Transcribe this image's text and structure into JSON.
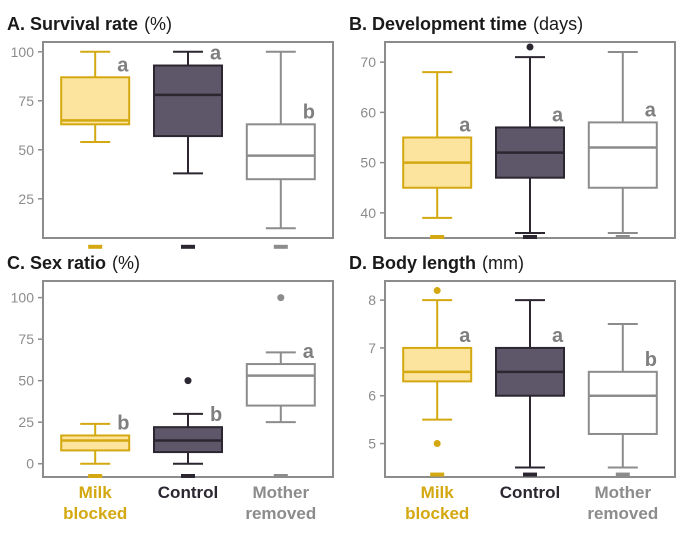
{
  "colors": {
    "milk": "#D4A810",
    "milk_fill": "#FCE39E",
    "control": "#2B2630",
    "control_fill": "#5E5669",
    "mother": "#8C8C8C",
    "mother_fill": "#FFFFFF",
    "axis": "#8C8C8C",
    "tick_text": "#8C8C8C",
    "letter": "#7F7F7F"
  },
  "groups": [
    {
      "id": "milk",
      "lines": [
        "Milk",
        "blocked"
      ]
    },
    {
      "id": "control",
      "lines": [
        "Control"
      ]
    },
    {
      "id": "mother",
      "lines": [
        "Mother",
        "removed"
      ]
    }
  ],
  "chart_data": [
    {
      "type": "box",
      "title_bold": "A. Survival rate",
      "title_unit": "(%)",
      "ylim": [
        5,
        105
      ],
      "yticks": [
        "25",
        "50",
        "75",
        "100"
      ],
      "categories": [
        "Milk blocked",
        "Control",
        "Mother removed"
      ],
      "boxes": [
        {
          "group": "milk",
          "min": 54,
          "q1": 63,
          "median": 65,
          "q3": 87,
          "max": 100,
          "outliers": [],
          "floor": 0,
          "letter": "a"
        },
        {
          "group": "control",
          "min": 38,
          "q1": 57,
          "median": 78,
          "q3": 93,
          "max": 100,
          "outliers": [],
          "floor": 0,
          "letter": "a"
        },
        {
          "group": "mother",
          "min": 10,
          "q1": 35,
          "median": 47,
          "q3": 63,
          "max": 100,
          "outliers": [],
          "floor": 0,
          "letter": "b"
        }
      ]
    },
    {
      "type": "box",
      "title_bold": "B. Development time",
      "title_unit": "(days)",
      "ylim": [
        35,
        74
      ],
      "yticks": [
        "40",
        "50",
        "60",
        "70"
      ],
      "categories": [
        "Milk blocked",
        "Control",
        "Mother removed"
      ],
      "boxes": [
        {
          "group": "milk",
          "min": 39,
          "q1": 45,
          "median": 50,
          "q3": 55,
          "max": 68,
          "outliers": [],
          "floor": 35,
          "letter": "a"
        },
        {
          "group": "control",
          "min": 36,
          "q1": 47,
          "median": 52,
          "q3": 57,
          "max": 71,
          "outliers": [
            73
          ],
          "floor": 35,
          "letter": "a"
        },
        {
          "group": "mother",
          "min": 36,
          "q1": 45,
          "median": 53,
          "q3": 58,
          "max": 72,
          "outliers": [],
          "floor": 35,
          "letter": "a"
        }
      ]
    },
    {
      "type": "box",
      "title_bold": "C. Sex ratio",
      "title_unit": "(%)",
      "ylim": [
        -8,
        110
      ],
      "yticks": [
        "0",
        "25",
        "50",
        "75",
        "100"
      ],
      "categories": [
        "Milk blocked",
        "Control",
        "Mother removed"
      ],
      "boxes": [
        {
          "group": "milk",
          "min": 0,
          "q1": 8,
          "median": 14,
          "q3": 17,
          "max": 24,
          "outliers": [],
          "floor": -8,
          "letter": "b"
        },
        {
          "group": "control",
          "min": 0,
          "q1": 7,
          "median": 14,
          "q3": 22,
          "max": 30,
          "outliers": [
            50
          ],
          "floor": -8,
          "letter": "b"
        },
        {
          "group": "mother",
          "min": 25,
          "q1": 35,
          "median": 53,
          "q3": 60,
          "max": 67,
          "outliers": [
            100
          ],
          "floor": -8,
          "letter": "a"
        }
      ]
    },
    {
      "type": "box",
      "title_bold": "D. Body length",
      "title_unit": "(mm)",
      "ylim": [
        4.3,
        8.4
      ],
      "yticks": [
        "5",
        "6",
        "7",
        "8"
      ],
      "categories": [
        "Milk blocked",
        "Control",
        "Mother removed"
      ],
      "boxes": [
        {
          "group": "milk",
          "min": 5.5,
          "q1": 6.3,
          "median": 6.5,
          "q3": 7.0,
          "max": 8.0,
          "outliers": [
            8.2,
            5.0
          ],
          "floor": 4.33,
          "letter": "a"
        },
        {
          "group": "control",
          "min": 4.5,
          "q1": 6.0,
          "median": 6.5,
          "q3": 7.0,
          "max": 8.0,
          "outliers": [],
          "floor": 4.33,
          "letter": "a"
        },
        {
          "group": "mother",
          "min": 4.5,
          "q1": 5.2,
          "median": 6.0,
          "q3": 6.5,
          "max": 7.5,
          "outliers": [],
          "floor": 4.33,
          "letter": "b"
        }
      ]
    }
  ]
}
